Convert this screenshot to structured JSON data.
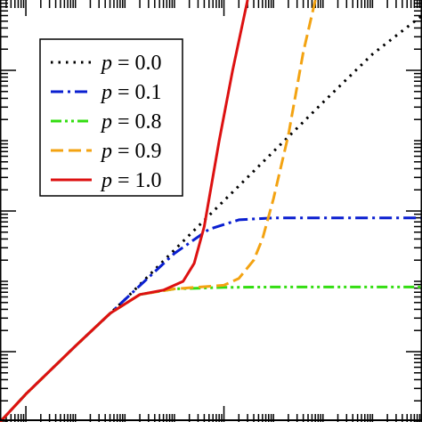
{
  "chart_data": {
    "type": "line",
    "xscale": "log",
    "yscale": "log",
    "xlim": [
      0.3,
      100000000
    ],
    "ylim": [
      0.1,
      100000
    ],
    "xticks_major": [
      1,
      10000
    ],
    "yticks_major": [
      1,
      100,
      10000
    ],
    "grid": false,
    "legend_position": "top-left",
    "series": [
      {
        "name": "p = 0.0",
        "color": "#000000",
        "dash": "dotted",
        "label": {
          "var": "p",
          "eq": " = ",
          "val": "0.0"
        },
        "x": [
          0.3,
          1,
          10,
          100,
          1000,
          10000,
          100000,
          1000000,
          10000000,
          100000000
        ],
        "y": [
          0.1,
          0.25,
          1.2,
          5.5,
          28,
          140,
          700,
          3500,
          17000,
          60000
        ]
      },
      {
        "name": "p = 0.1",
        "color": "#0a1fd0",
        "dash": "dashdot",
        "label": {
          "var": "p",
          "eq": " = ",
          "val": "0.1"
        },
        "x": [
          0.3,
          1,
          10,
          100,
          1000,
          5000,
          20000,
          100000,
          1000000,
          10000000,
          100000000
        ],
        "y": [
          0.1,
          0.25,
          1.2,
          5.5,
          25,
          55,
          75,
          80,
          80,
          80,
          80
        ]
      },
      {
        "name": "p = 0.8",
        "color": "#33dd11",
        "dash": "dashdotdot",
        "label": {
          "var": "p",
          "eq": " = ",
          "val": "0.8"
        },
        "x": [
          0.3,
          1,
          10,
          50,
          200,
          1000,
          10000,
          100000,
          1000000,
          10000000,
          100000000
        ],
        "y": [
          0.1,
          0.25,
          1.2,
          3.5,
          6.5,
          7.8,
          8.2,
          8.3,
          8.3,
          8.3,
          8.3
        ]
      },
      {
        "name": "p = 0.9",
        "color": "#f3a312",
        "dash": "dashed",
        "label": {
          "var": "p",
          "eq": " = ",
          "val": "0.9"
        },
        "x": [
          0.3,
          1,
          10,
          50,
          200,
          1000,
          10000,
          20000,
          40000,
          60000,
          100000,
          200000,
          400000,
          700000
        ],
        "y": [
          0.1,
          0.25,
          1.2,
          3.5,
          6.5,
          7.8,
          8.8,
          11,
          20,
          40,
          150,
          1200,
          18000,
          100000
        ]
      },
      {
        "name": "p = 1.0",
        "color": "#dd1111",
        "dash": "solid",
        "label": {
          "var": "p",
          "eq": " = ",
          "val": "1.0"
        },
        "x": [
          0.3,
          1,
          10,
          50,
          200,
          600,
          1500,
          2500,
          4000,
          8000,
          15000,
          30000
        ],
        "y": [
          0.1,
          0.25,
          1.2,
          3.5,
          6.5,
          7.5,
          10,
          18,
          60,
          1000,
          10000,
          100000
        ]
      }
    ]
  }
}
